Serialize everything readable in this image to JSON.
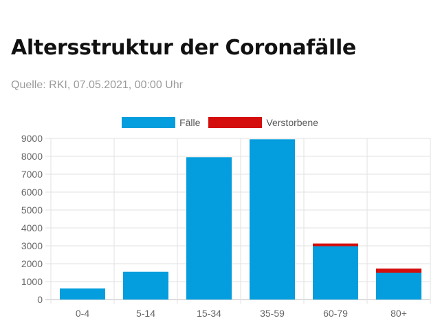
{
  "header": {
    "title": "Altersstruktur der Coronafälle",
    "subtitle": "Quelle: RKI, 07.05.2021, 00:00 Uhr"
  },
  "colors": {
    "faelle": "#049ddd",
    "verstorbene": "#d40d0d"
  },
  "chart_data": {
    "type": "bar",
    "stacked": true,
    "categories": [
      "0-4",
      "5-14",
      "15-34",
      "35-59",
      "60-79",
      "80+"
    ],
    "series": [
      {
        "name": "Fälle",
        "values": [
          620,
          1550,
          7950,
          8950,
          2980,
          1500
        ]
      },
      {
        "name": "Verstorbene",
        "values": [
          0,
          0,
          0,
          0,
          150,
          230
        ]
      }
    ],
    "y_ticks": [
      0,
      1000,
      2000,
      3000,
      4000,
      5000,
      6000,
      7000,
      8000,
      9000
    ],
    "ylim": [
      0,
      9000
    ],
    "grid": true,
    "legend": "top-center"
  }
}
